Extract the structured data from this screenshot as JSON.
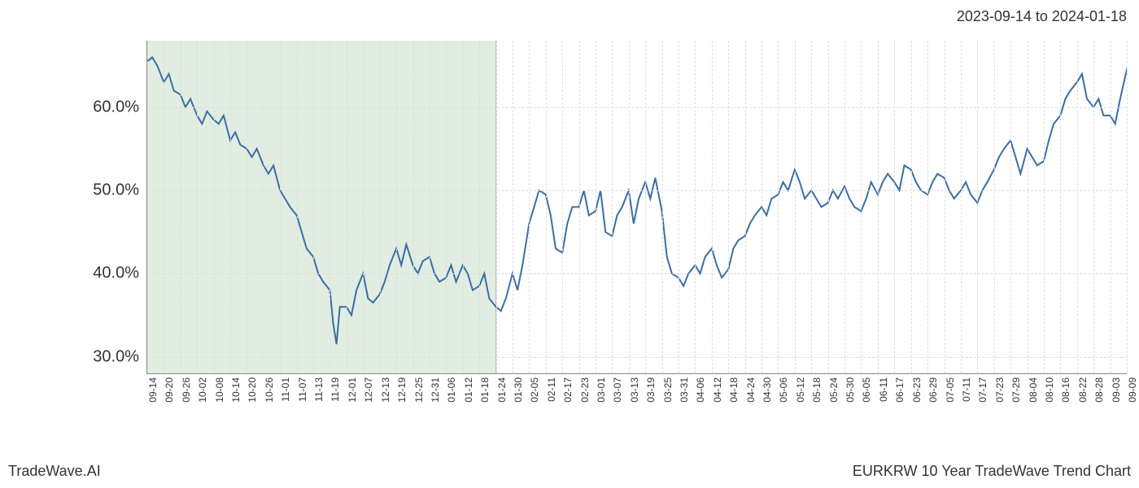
{
  "header": {
    "date_range": "2023-09-14 to 2024-01-18"
  },
  "footer": {
    "brand": "TradeWave.AI",
    "title": "EURKRW 10 Year TradeWave Trend Chart"
  },
  "chart": {
    "type": "line",
    "background_color": "#ffffff",
    "line_color": "#3a6ea5",
    "line_width": 2,
    "grid_color": "#dddddd",
    "axis_color": "#888888",
    "shaded_region": {
      "fill": "rgba(180, 210, 180, 0.4)",
      "x_start_index": 0,
      "x_end_index": 21
    },
    "y_axis": {
      "min": 28,
      "max": 68,
      "ticks": [
        30,
        40,
        50,
        60
      ],
      "tick_labels": [
        "30.0%",
        "40.0%",
        "50.0%",
        "60.0%"
      ],
      "label_fontsize": 20
    },
    "x_axis": {
      "labels": [
        "09-14",
        "09-20",
        "09-26",
        "10-02",
        "10-08",
        "10-14",
        "10-20",
        "10-26",
        "11-01",
        "11-07",
        "11-13",
        "11-19",
        "12-01",
        "12-07",
        "12-13",
        "12-19",
        "12-25",
        "12-31",
        "01-06",
        "01-12",
        "01-18",
        "01-24",
        "01-30",
        "02-05",
        "02-11",
        "02-17",
        "02-23",
        "03-01",
        "03-07",
        "03-13",
        "03-19",
        "03-25",
        "03-31",
        "04-06",
        "04-12",
        "04-18",
        "04-24",
        "04-30",
        "05-06",
        "05-12",
        "05-18",
        "05-24",
        "05-30",
        "06-05",
        "06-11",
        "06-17",
        "06-23",
        "06-29",
        "07-05",
        "07-11",
        "07-17",
        "07-23",
        "07-29",
        "08-04",
        "08-10",
        "08-16",
        "08-22",
        "08-28",
        "09-03",
        "09-09"
      ],
      "label_fontsize": 12
    },
    "data": {
      "x_indices": [
        0,
        1,
        2,
        3,
        4,
        5,
        6,
        7,
        8,
        9,
        10,
        11,
        12,
        13,
        14,
        15,
        16,
        17,
        18,
        19,
        20,
        21,
        22,
        23,
        24,
        25,
        26,
        27,
        28,
        29,
        30,
        31,
        32,
        33,
        34,
        35,
        36,
        37,
        38,
        39,
        40,
        41,
        42,
        43,
        44,
        45,
        46,
        47,
        48,
        49,
        50,
        51,
        52,
        53,
        54,
        55,
        56,
        57,
        58,
        59
      ],
      "values_at_ticks": [
        65.5,
        63.0,
        61.5,
        59.0,
        58.5,
        56.0,
        55.0,
        53.0,
        50.0,
        47.0,
        42.0,
        38.0,
        36.0,
        40.0,
        37.5,
        43.0,
        41.0,
        42.0,
        39.5,
        41.0,
        38.5,
        36.0,
        40.0,
        46.0,
        49.5,
        42.5,
        48.0,
        47.5,
        44.5,
        50.0,
        51.0,
        47.5,
        39.5,
        41.0,
        43.0,
        40.5,
        44.5,
        48.0,
        49.5,
        52.5,
        50.0,
        48.5,
        50.5,
        47.5,
        49.5,
        51.0,
        52.5,
        49.5,
        51.5,
        50.0,
        48.5,
        52.5,
        56.0,
        55.0,
        53.5,
        59.0,
        63.0,
        60.0,
        59.0,
        64.5
      ],
      "dense_path": [
        [
          0,
          65.5
        ],
        [
          0.3,
          66
        ],
        [
          0.6,
          65
        ],
        [
          1,
          63
        ],
        [
          1.3,
          64
        ],
        [
          1.6,
          62
        ],
        [
          2,
          61.5
        ],
        [
          2.3,
          60
        ],
        [
          2.6,
          61
        ],
        [
          3,
          59
        ],
        [
          3.3,
          58
        ],
        [
          3.6,
          59.5
        ],
        [
          4,
          58.5
        ],
        [
          4.3,
          58
        ],
        [
          4.6,
          59
        ],
        [
          5,
          56
        ],
        [
          5.3,
          57
        ],
        [
          5.6,
          55.5
        ],
        [
          6,
          55
        ],
        [
          6.3,
          54
        ],
        [
          6.6,
          55
        ],
        [
          7,
          53
        ],
        [
          7.3,
          52
        ],
        [
          7.6,
          53
        ],
        [
          8,
          50
        ],
        [
          8.3,
          49
        ],
        [
          8.6,
          48
        ],
        [
          9,
          47
        ],
        [
          9.3,
          45
        ],
        [
          9.6,
          43
        ],
        [
          10,
          42
        ],
        [
          10.3,
          40
        ],
        [
          10.6,
          39
        ],
        [
          11,
          38
        ],
        [
          11.2,
          34
        ],
        [
          11.4,
          31.5
        ],
        [
          11.6,
          36
        ],
        [
          12,
          36
        ],
        [
          12.3,
          35
        ],
        [
          12.6,
          38
        ],
        [
          13,
          40
        ],
        [
          13.3,
          37
        ],
        [
          13.6,
          36.5
        ],
        [
          14,
          37.5
        ],
        [
          14.3,
          39
        ],
        [
          14.6,
          41
        ],
        [
          15,
          43
        ],
        [
          15.3,
          41
        ],
        [
          15.6,
          43.5
        ],
        [
          16,
          41
        ],
        [
          16.3,
          40
        ],
        [
          16.6,
          41.5
        ],
        [
          17,
          42
        ],
        [
          17.3,
          40
        ],
        [
          17.6,
          39
        ],
        [
          18,
          39.5
        ],
        [
          18.3,
          41
        ],
        [
          18.6,
          39
        ],
        [
          19,
          41
        ],
        [
          19.3,
          40
        ],
        [
          19.6,
          38
        ],
        [
          20,
          38.5
        ],
        [
          20.3,
          40
        ],
        [
          20.6,
          37
        ],
        [
          21,
          36
        ],
        [
          21.3,
          35.5
        ],
        [
          21.6,
          37
        ],
        [
          22,
          40
        ],
        [
          22.3,
          38
        ],
        [
          22.6,
          41
        ],
        [
          23,
          46
        ],
        [
          23.3,
          48
        ],
        [
          23.6,
          50
        ],
        [
          24,
          49.5
        ],
        [
          24.3,
          47
        ],
        [
          24.6,
          43
        ],
        [
          25,
          42.5
        ],
        [
          25.3,
          46
        ],
        [
          25.6,
          48
        ],
        [
          26,
          48
        ],
        [
          26.3,
          50
        ],
        [
          26.6,
          47
        ],
        [
          27,
          47.5
        ],
        [
          27.3,
          50
        ],
        [
          27.6,
          45
        ],
        [
          28,
          44.5
        ],
        [
          28.3,
          47
        ],
        [
          28.6,
          48
        ],
        [
          29,
          50
        ],
        [
          29.3,
          46
        ],
        [
          29.6,
          49
        ],
        [
          30,
          51
        ],
        [
          30.3,
          49
        ],
        [
          30.6,
          51.5
        ],
        [
          31,
          47.5
        ],
        [
          31.3,
          42
        ],
        [
          31.6,
          40
        ],
        [
          32,
          39.5
        ],
        [
          32.3,
          38.5
        ],
        [
          32.6,
          40
        ],
        [
          33,
          41
        ],
        [
          33.3,
          40
        ],
        [
          33.6,
          42
        ],
        [
          34,
          43
        ],
        [
          34.3,
          41
        ],
        [
          34.6,
          39.5
        ],
        [
          35,
          40.5
        ],
        [
          35.3,
          43
        ],
        [
          35.6,
          44
        ],
        [
          36,
          44.5
        ],
        [
          36.3,
          46
        ],
        [
          36.6,
          47
        ],
        [
          37,
          48
        ],
        [
          37.3,
          47
        ],
        [
          37.6,
          49
        ],
        [
          38,
          49.5
        ],
        [
          38.3,
          51
        ],
        [
          38.6,
          50
        ],
        [
          39,
          52.5
        ],
        [
          39.3,
          51
        ],
        [
          39.6,
          49
        ],
        [
          40,
          50
        ],
        [
          40.3,
          49
        ],
        [
          40.6,
          48
        ],
        [
          41,
          48.5
        ],
        [
          41.3,
          50
        ],
        [
          41.6,
          49
        ],
        [
          42,
          50.5
        ],
        [
          42.3,
          49
        ],
        [
          42.6,
          48
        ],
        [
          43,
          47.5
        ],
        [
          43.3,
          49
        ],
        [
          43.6,
          51
        ],
        [
          44,
          49.5
        ],
        [
          44.3,
          51
        ],
        [
          44.6,
          52
        ],
        [
          45,
          51
        ],
        [
          45.3,
          50
        ],
        [
          45.6,
          53
        ],
        [
          46,
          52.5
        ],
        [
          46.3,
          51
        ],
        [
          46.6,
          50
        ],
        [
          47,
          49.5
        ],
        [
          47.3,
          51
        ],
        [
          47.6,
          52
        ],
        [
          48,
          51.5
        ],
        [
          48.3,
          50
        ],
        [
          48.6,
          49
        ],
        [
          49,
          50
        ],
        [
          49.3,
          51
        ],
        [
          49.6,
          49.5
        ],
        [
          50,
          48.5
        ],
        [
          50.3,
          50
        ],
        [
          50.6,
          51
        ],
        [
          51,
          52.5
        ],
        [
          51.3,
          54
        ],
        [
          51.6,
          55
        ],
        [
          52,
          56
        ],
        [
          52.3,
          54
        ],
        [
          52.6,
          52
        ],
        [
          53,
          55
        ],
        [
          53.3,
          54
        ],
        [
          53.6,
          53
        ],
        [
          54,
          53.5
        ],
        [
          54.3,
          56
        ],
        [
          54.6,
          58
        ],
        [
          55,
          59
        ],
        [
          55.3,
          61
        ],
        [
          55.6,
          62
        ],
        [
          56,
          63
        ],
        [
          56.3,
          64
        ],
        [
          56.6,
          61
        ],
        [
          57,
          60
        ],
        [
          57.3,
          61
        ],
        [
          57.6,
          59
        ],
        [
          58,
          59
        ],
        [
          58.3,
          58
        ],
        [
          58.6,
          61
        ],
        [
          59,
          64.5
        ],
        [
          59.3,
          63
        ],
        [
          59.6,
          65
        ],
        [
          59.9,
          64.5
        ]
      ]
    }
  }
}
